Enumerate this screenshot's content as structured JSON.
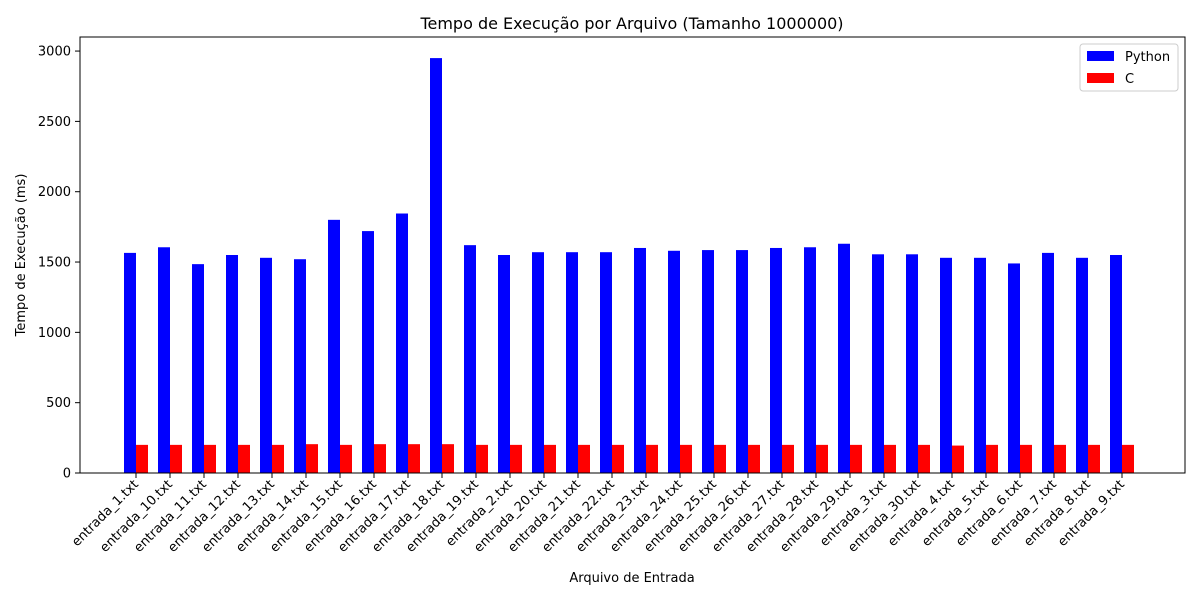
{
  "chart_data": {
    "type": "bar",
    "title": "Tempo de Execução por Arquivo (Tamanho 1000000)",
    "xlabel": "Arquivo de Entrada",
    "ylabel": "Tempo de Execução (ms)",
    "ylim": [
      0,
      3100
    ],
    "yticks": [
      0,
      500,
      1000,
      1500,
      2000,
      2500,
      3000
    ],
    "legend_position": "top-right",
    "grid": false,
    "categories": [
      "entrada_1.txt",
      "entrada_10.txt",
      "entrada_11.txt",
      "entrada_12.txt",
      "entrada_13.txt",
      "entrada_14.txt",
      "entrada_15.txt",
      "entrada_16.txt",
      "entrada_17.txt",
      "entrada_18.txt",
      "entrada_19.txt",
      "entrada_2.txt",
      "entrada_20.txt",
      "entrada_21.txt",
      "entrada_22.txt",
      "entrada_23.txt",
      "entrada_24.txt",
      "entrada_25.txt",
      "entrada_26.txt",
      "entrada_27.txt",
      "entrada_28.txt",
      "entrada_29.txt",
      "entrada_3.txt",
      "entrada_30.txt",
      "entrada_4.txt",
      "entrada_5.txt",
      "entrada_6.txt",
      "entrada_7.txt",
      "entrada_8.txt",
      "entrada_9.txt"
    ],
    "series": [
      {
        "name": "Python",
        "color": "#0000ff",
        "values": [
          1565,
          1605,
          1485,
          1550,
          1530,
          1520,
          1800,
          1720,
          1845,
          2950,
          1620,
          1550,
          1570,
          1570,
          1570,
          1600,
          1580,
          1585,
          1585,
          1600,
          1605,
          1630,
          1555,
          1555,
          1530,
          1530,
          1490,
          1565,
          1530,
          1550
        ]
      },
      {
        "name": "C",
        "color": "#ff0000",
        "values": [
          200,
          200,
          200,
          200,
          200,
          205,
          200,
          205,
          205,
          205,
          200,
          200,
          200,
          200,
          200,
          200,
          200,
          200,
          200,
          200,
          200,
          200,
          200,
          200,
          195,
          200,
          200,
          200,
          200,
          200
        ]
      }
    ]
  }
}
